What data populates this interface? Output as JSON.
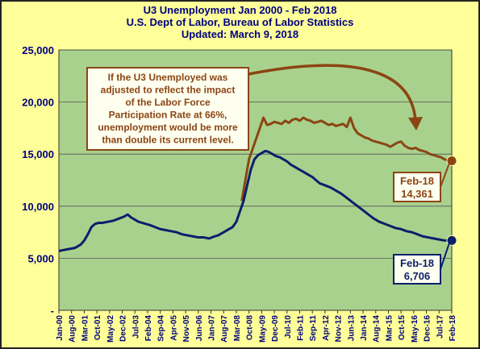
{
  "chart_data": {
    "type": "line",
    "title": "U3 Unemployment  Jan 2000 - Feb 2018",
    "subtitle": "U.S. Dept of Labor, Bureau of Labor Statistics",
    "updated": "Updated: March 9, 2018",
    "xlabel": "",
    "ylabel": "",
    "ylim": [
      0,
      25000
    ],
    "yticks": [
      "-",
      "5,000",
      "10,000",
      "15,000",
      "20,000",
      "25,000"
    ],
    "ytick_values": [
      0,
      5000,
      10000,
      15000,
      20000,
      25000
    ],
    "xlim": [
      0,
      217
    ],
    "xticks": [
      "Jan-00",
      "Aug-00",
      "Mar-01",
      "Oct-01",
      "May-02",
      "Dec-02",
      "Jul-03",
      "Feb-04",
      "Sep-04",
      "Apr-05",
      "Nov-05",
      "Jun-06",
      "Jan-07",
      "Aug-07",
      "Mar-08",
      "Oct-08",
      "May-09",
      "Dec-09",
      "Jul-10",
      "Feb-11",
      "Sep-11",
      "Apr-12",
      "Nov-12",
      "Jun-13",
      "Jan-14",
      "Aug-14",
      "Mar-15",
      "Oct-15",
      "May-16",
      "Dec-16",
      "Jul-17",
      "Feb-18"
    ],
    "grid": true,
    "series": [
      {
        "name": "",
        "color": "#0b1f6b",
        "x": [
          0,
          3,
          6,
          9,
          12,
          14,
          16,
          18,
          20,
          22,
          24,
          27,
          30,
          33,
          36,
          38,
          40,
          42,
          44,
          46,
          48,
          50,
          53,
          56,
          59,
          62,
          65,
          68,
          71,
          74,
          77,
          80,
          83,
          86,
          88,
          90,
          92,
          94,
          96,
          98,
          100,
          102,
          104,
          106,
          108,
          110,
          112,
          114,
          116,
          118,
          120,
          122,
          124,
          126,
          128,
          130,
          132,
          134,
          136,
          138,
          140,
          142,
          144,
          147,
          150,
          153,
          156,
          159,
          162,
          165,
          168,
          171,
          174,
          177,
          180,
          183,
          186,
          189,
          192,
          195,
          198,
          201,
          204,
          207,
          210,
          213,
          216,
          217
        ],
        "y": [
          5700,
          5800,
          5900,
          6000,
          6300,
          6700,
          7300,
          8000,
          8300,
          8400,
          8400,
          8500,
          8600,
          8800,
          9000,
          9200,
          8900,
          8700,
          8500,
          8400,
          8300,
          8200,
          8000,
          7800,
          7700,
          7600,
          7500,
          7300,
          7200,
          7100,
          7000,
          7000,
          6900,
          7100,
          7200,
          7400,
          7600,
          7800,
          8000,
          8500,
          9500,
          10500,
          12000,
          13500,
          14500,
          14900,
          15100,
          15300,
          15200,
          15000,
          14800,
          14700,
          14500,
          14300,
          14000,
          13800,
          13600,
          13400,
          13200,
          13000,
          12800,
          12500,
          12200,
          12000,
          11800,
          11500,
          11200,
          10800,
          10400,
          10000,
          9600,
          9200,
          8800,
          8500,
          8300,
          8100,
          7900,
          7800,
          7600,
          7500,
          7300,
          7100,
          7000,
          6900,
          6800,
          6700,
          6700,
          6706
        ]
      },
      {
        "name": "",
        "color": "#8b4513",
        "x": [
          0,
          0
        ],
        "y": [
          0,
          0
        ],
        "adjusted_x": [
          101,
          103,
          105,
          107,
          109,
          111,
          113,
          115,
          117,
          119,
          121,
          123,
          125,
          127,
          129,
          131,
          133,
          135,
          137,
          139,
          141,
          143,
          145,
          147,
          149,
          151,
          153,
          155,
          157,
          159,
          161,
          163,
          165,
          167,
          169,
          171,
          173,
          175,
          177,
          179,
          181,
          183,
          185,
          187,
          189,
          191,
          193,
          195,
          197,
          199,
          201,
          203,
          205,
          207,
          209,
          211,
          213,
          215,
          217
        ],
        "adjusted_y": [
          10500,
          12500,
          14500,
          15500,
          16500,
          17500,
          18500,
          17800,
          17900,
          18100,
          18000,
          17900,
          18200,
          18000,
          18300,
          18400,
          18200,
          18500,
          18300,
          18200,
          18000,
          18100,
          18200,
          18000,
          17800,
          17900,
          17700,
          17800,
          17900,
          17600,
          18500,
          17500,
          17000,
          16800,
          16600,
          16500,
          16300,
          16200,
          16100,
          16000,
          15900,
          15700,
          15900,
          16100,
          16200,
          15800,
          15600,
          15500,
          15600,
          15400,
          15300,
          15200,
          15000,
          14900,
          14800,
          14700,
          14500,
          14400,
          14361
        ]
      }
    ],
    "annotations": {
      "note": "If the U3 Unemployed was adjusted to reflect the impact of the Labor Force Participation Rate at 66%, unemployment  would be more than double its current level.",
      "label_brown_line1": "Feb-18",
      "label_brown_line2": "14,361",
      "label_blue_line1": "Feb-18",
      "label_blue_line2": "6,706"
    }
  },
  "colors": {
    "background": "#ffff99",
    "plot_area": "#a9d18e",
    "title_text": "#000080",
    "blue_series": "#0b1f6b",
    "brown_series": "#8b4513",
    "gridline": "#ffffff"
  }
}
